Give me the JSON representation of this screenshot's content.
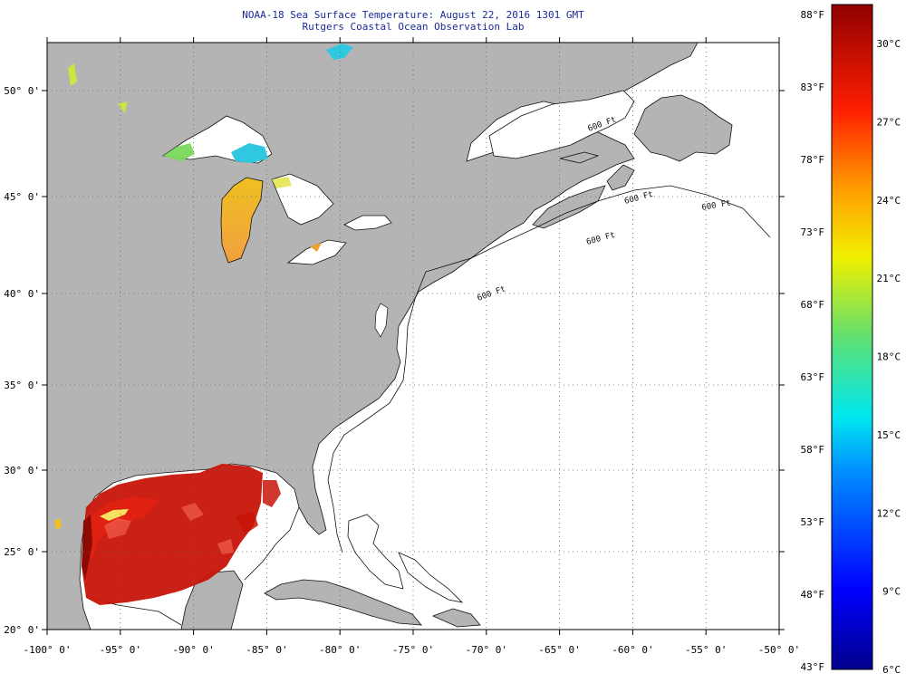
{
  "title": "NOAA-18 Sea Surface Temperature:  August 22, 2016 1301 GMT",
  "subtitle": "Rutgers Coastal Ocean Observation Lab",
  "map": {
    "lon_range": [
      -100,
      -50
    ],
    "lat_range": [
      20,
      52.3
    ],
    "lon_ticks": [
      -100,
      -95,
      -90,
      -85,
      -80,
      -75,
      -70,
      -65,
      -60,
      -55,
      -50
    ],
    "lon_labels": [
      "-100° 0'",
      "-95° 0'",
      "-90° 0'",
      "-85° 0'",
      "-80° 0'",
      "-75° 0'",
      "-70° 0'",
      "-65° 0'",
      "-60° 0'",
      "-55° 0'",
      "-50° 0'"
    ],
    "lat_ticks": [
      50,
      45,
      40,
      35,
      30,
      25,
      20
    ],
    "lat_labels": [
      "50° 0'",
      "45° 0'",
      "40° 0'",
      "35° 0'",
      "30° 0'",
      "25° 0'",
      "20° 0'"
    ],
    "land_color": "#b4b4b4",
    "ocean_color": "#ffffff",
    "isobath_labels": [
      "600 Ft",
      "600 Ft",
      "600 Ft",
      "600 Ft",
      "600 Ft"
    ],
    "grid": "dotted"
  },
  "colorbar": {
    "fahrenheit_labels": [
      "88°F",
      "83°F",
      "78°F",
      "73°F",
      "68°F",
      "63°F",
      "58°F",
      "53°F",
      "48°F",
      "43°F"
    ],
    "celsius_labels": [
      "30°C",
      "27°C",
      "24°C",
      "21°C",
      "18°C",
      "15°C",
      "12°C",
      "9°C",
      "6°C"
    ],
    "range_celsius": [
      6,
      31.5
    ]
  }
}
